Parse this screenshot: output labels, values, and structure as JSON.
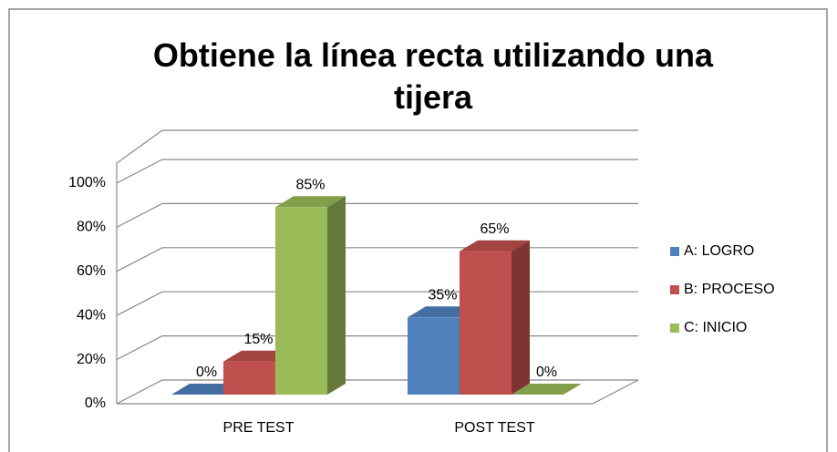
{
  "chart_data": {
    "type": "bar3d",
    "title": "Obtiene la línea recta utilizando una tijera",
    "categories": [
      "PRE TEST",
      "POST TEST"
    ],
    "series": [
      {
        "name": "A: LOGRO",
        "color": "#4f81bd",
        "values": [
          0,
          35
        ],
        "value_labels": [
          "0%",
          "35%"
        ]
      },
      {
        "name": "B: PROCESO",
        "color": "#c0504d",
        "values": [
          15,
          65
        ],
        "value_labels": [
          "15%",
          "65%"
        ]
      },
      {
        "name": "C: INICIO",
        "color": "#9bbb59",
        "values": [
          85,
          0
        ],
        "value_labels": [
          "85%",
          "0%"
        ]
      }
    ],
    "ylim": [
      0,
      100
    ],
    "yticks": [
      {
        "value": 0,
        "label": "0%"
      },
      {
        "value": 20,
        "label": "20%"
      },
      {
        "value": 40,
        "label": "40%"
      },
      {
        "value": 60,
        "label": "60%"
      },
      {
        "value": 80,
        "label": "80%"
      },
      {
        "value": 100,
        "label": "100%"
      }
    ],
    "grid": true,
    "legend": "right"
  }
}
